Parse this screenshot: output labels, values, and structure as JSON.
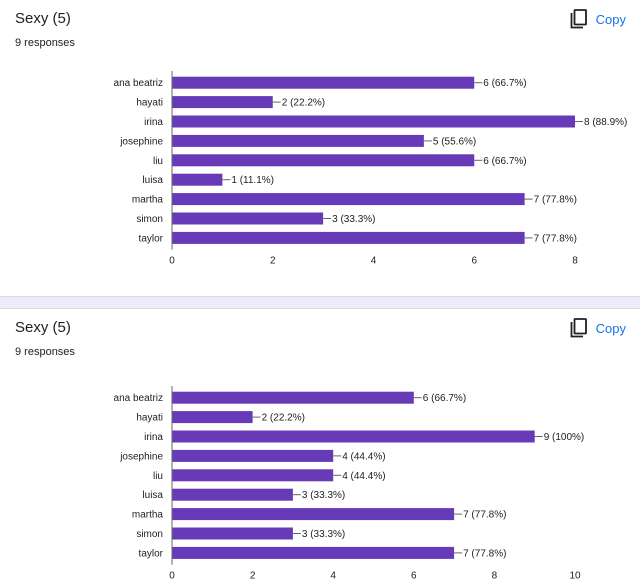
{
  "charts": [
    {
      "title": "Sexy (5)",
      "responses": "9 responses",
      "copy_label": "Copy"
    },
    {
      "title": "Sexy (5)",
      "responses": "9 responses",
      "copy_label": "Copy"
    }
  ],
  "colors": {
    "bar": "#673ab7",
    "accent": "#1a73e8",
    "axis": "#666666"
  },
  "icons": {
    "copy": "copy-icon"
  },
  "chart_data": [
    {
      "type": "bar",
      "orientation": "horizontal",
      "categories": [
        "ana beatriz",
        "hayati",
        "irina",
        "josephine",
        "liu",
        "luisa",
        "martha",
        "simon",
        "taylor"
      ],
      "values": [
        6,
        2,
        8,
        5,
        6,
        1,
        7,
        3,
        7
      ],
      "labels": [
        "6 (66.7%)",
        "2 (22.2%)",
        "8 (88.9%)",
        "5 (55.6%)",
        "6 (66.7%)",
        "1 (11.1%)",
        "7 (77.8%)",
        "3 (33.3%)",
        "7 (77.8%)"
      ],
      "xticks": [
        0,
        2,
        4,
        6,
        8
      ],
      "xlim": [
        0,
        8
      ],
      "grid": false
    },
    {
      "type": "bar",
      "orientation": "horizontal",
      "categories": [
        "ana beatriz",
        "hayati",
        "irina",
        "josephine",
        "liu",
        "luisa",
        "martha",
        "simon",
        "taylor"
      ],
      "values": [
        6,
        2,
        9,
        4,
        4,
        3,
        7,
        3,
        7
      ],
      "labels": [
        "6 (66.7%)",
        "2 (22.2%)",
        "9 (100%)",
        "4 (44.4%)",
        "4 (44.4%)",
        "3 (33.3%)",
        "7 (77.8%)",
        "3 (33.3%)",
        "7 (77.8%)"
      ],
      "xticks": [
        0,
        2,
        4,
        6,
        8,
        10
      ],
      "xlim": [
        0,
        10
      ],
      "grid": false
    }
  ]
}
